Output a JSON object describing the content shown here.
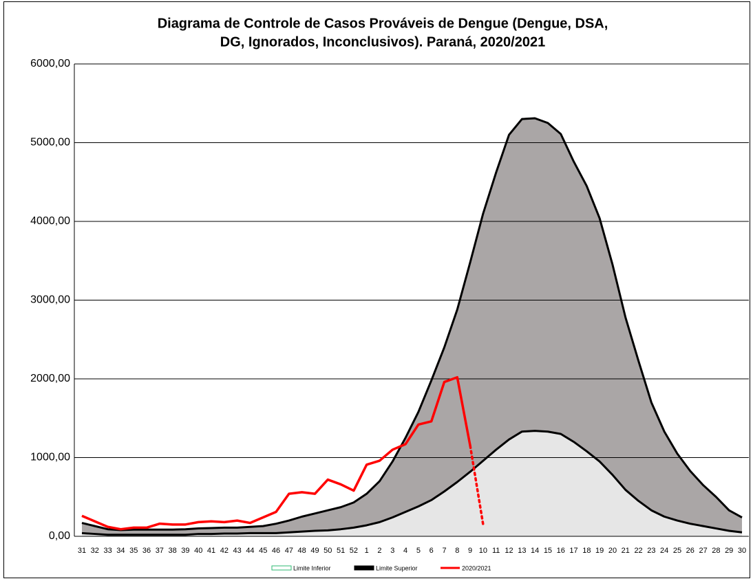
{
  "chart_data": {
    "type": "area-band",
    "title": [
      "Diagrama de Controle de Casos Prováveis de Dengue (Dengue, DSA,",
      "DG, Ignorados, Inconclusivos). Paraná, 2020/2021"
    ],
    "categories": [
      "31",
      "32",
      "33",
      "34",
      "35",
      "36",
      "37",
      "38",
      "39",
      "40",
      "41",
      "42",
      "43",
      "44",
      "45",
      "46",
      "47",
      "48",
      "49",
      "50",
      "51",
      "52",
      "1",
      "2",
      "3",
      "4",
      "5",
      "6",
      "7",
      "8",
      "9",
      "10",
      "11",
      "12",
      "13",
      "14",
      "15",
      "16",
      "17",
      "18",
      "19",
      "20",
      "21",
      "22",
      "23",
      "24",
      "25",
      "26",
      "27",
      "28",
      "29",
      "30"
    ],
    "series": [
      {
        "name": "Limite Inferior",
        "color": "#000000",
        "fill": "#e6e6e6",
        "legend_color": "#2eb872",
        "values": [
          40,
          30,
          20,
          20,
          20,
          20,
          20,
          20,
          20,
          30,
          30,
          35,
          35,
          40,
          40,
          40,
          50,
          60,
          70,
          75,
          90,
          110,
          140,
          180,
          240,
          310,
          380,
          460,
          570,
          690,
          820,
          960,
          1100,
          1230,
          1330,
          1340,
          1330,
          1300,
          1200,
          1080,
          950,
          780,
          590,
          450,
          330,
          250,
          200,
          160,
          130,
          100,
          70,
          50
        ]
      },
      {
        "name": "Limite Superior",
        "color": "#000000",
        "fill": "#aaa6a6",
        "legend_color": "#000000",
        "values": [
          170,
          130,
          90,
          80,
          85,
          85,
          85,
          85,
          90,
          100,
          105,
          110,
          110,
          120,
          130,
          160,
          200,
          250,
          290,
          330,
          370,
          430,
          540,
          700,
          950,
          1250,
          1580,
          1980,
          2400,
          2880,
          3480,
          4100,
          4620,
          5100,
          5300,
          5310,
          5250,
          5110,
          4760,
          4450,
          4040,
          3450,
          2780,
          2230,
          1700,
          1330,
          1050,
          830,
          650,
          500,
          330,
          240
        ]
      },
      {
        "name": "2020/2021",
        "color": "#ff0000",
        "dotted_last_segment": true,
        "legend_color": "#ff0000",
        "values": [
          260,
          190,
          120,
          90,
          110,
          110,
          160,
          150,
          150,
          180,
          190,
          180,
          200,
          170,
          240,
          310,
          540,
          560,
          540,
          720,
          660,
          580,
          910,
          960,
          1100,
          1170,
          1420,
          1460,
          1960,
          2020,
          1150,
          150,
          null,
          null,
          null,
          null,
          null,
          null,
          null,
          null,
          null,
          null,
          null,
          null,
          null,
          null,
          null,
          null,
          null,
          null,
          null,
          null
        ]
      }
    ],
    "ylim": [
      0,
      6000
    ],
    "yticks": [
      {
        "value": 0,
        "label": "0,00"
      },
      {
        "value": 1000,
        "label": "1000,00"
      },
      {
        "value": 2000,
        "label": "2000,00"
      },
      {
        "value": 3000,
        "label": "3000,00"
      },
      {
        "value": 4000,
        "label": "4000,00"
      },
      {
        "value": 5000,
        "label": "5000,00"
      },
      {
        "value": 6000,
        "label": "6000,00"
      }
    ],
    "grid": true
  }
}
